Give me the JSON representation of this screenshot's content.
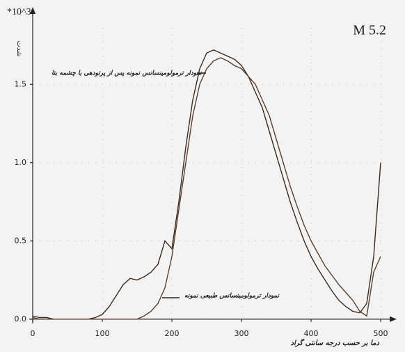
{
  "chart_data": {
    "type": "line",
    "title": "M 5.2",
    "y_unit": "*10^3",
    "y_label": "شدت",
    "x_label": "دما بر حسب درجه سانتی گراد",
    "x": [
      0,
      10,
      20,
      30,
      40,
      50,
      60,
      70,
      80,
      90,
      100,
      110,
      120,
      130,
      140,
      150,
      160,
      170,
      180,
      190,
      200,
      210,
      220,
      230,
      240,
      250,
      260,
      270,
      280,
      290,
      300,
      310,
      320,
      330,
      340,
      350,
      360,
      370,
      380,
      390,
      400,
      410,
      420,
      430,
      440,
      450,
      460,
      470,
      480,
      490,
      500
    ],
    "series": [
      {
        "name": "نمودار ترمولومینسانس نمونه پس از پرتودهی با چشمه بتا",
        "color": "#3b2a1c",
        "values": [
          0.02,
          0.01,
          0.01,
          0,
          0,
          0,
          0,
          0,
          0,
          0.01,
          0.03,
          0.08,
          0.15,
          0.22,
          0.26,
          0.25,
          0.27,
          0.3,
          0.35,
          0.5,
          0.45,
          0.75,
          1.1,
          1.4,
          1.6,
          1.7,
          1.72,
          1.7,
          1.68,
          1.66,
          1.62,
          1.55,
          1.45,
          1.35,
          1.2,
          1.05,
          0.9,
          0.75,
          0.62,
          0.5,
          0.4,
          0.32,
          0.25,
          0.18,
          0.12,
          0.08,
          0.05,
          0.04,
          0.1,
          0.4,
          1.0
        ]
      },
      {
        "name": "نمودار ترمولومینسانس طبیعی نمونه",
        "color": "#5a4030",
        "values": [
          0.01,
          0,
          0,
          0,
          0,
          0,
          0,
          0,
          0,
          0,
          0,
          0,
          0,
          0,
          0,
          0,
          0.02,
          0.05,
          0.1,
          0.2,
          0.4,
          0.7,
          1.0,
          1.3,
          1.5,
          1.6,
          1.65,
          1.67,
          1.65,
          1.62,
          1.6,
          1.55,
          1.5,
          1.4,
          1.3,
          1.15,
          1.0,
          0.85,
          0.72,
          0.6,
          0.5,
          0.42,
          0.34,
          0.28,
          0.22,
          0.17,
          0.12,
          0.05,
          0.02,
          0.3,
          0.4
        ]
      }
    ],
    "xlim": [
      -5,
      525
    ],
    "ylim": [
      -0.05,
      1.95
    ],
    "xticks": [
      0,
      100,
      200,
      300,
      400,
      500
    ],
    "yticks": [
      {
        "value": 0,
        "label": "0.0"
      },
      0.5,
      {
        "value": 1,
        "label": "1.0"
      },
      1.5
    ],
    "grid": true
  }
}
